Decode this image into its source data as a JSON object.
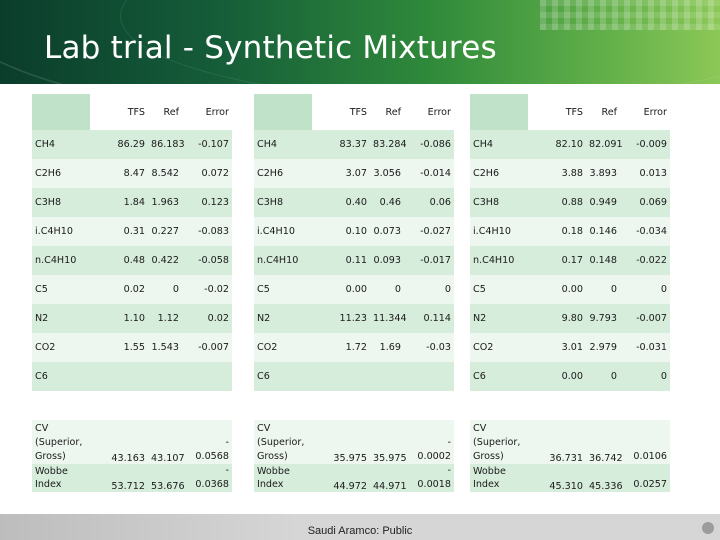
{
  "slide": {
    "title": "Lab trial - Synthetic Mixtures",
    "footer": "Saudi Aramco: Public"
  },
  "panels": [
    {
      "headers": [
        "TFS",
        "Ref",
        "Error"
      ],
      "rows": [
        {
          "label": "CH4",
          "tfs": "86.29",
          "ref": "86.183",
          "err": "-0.107"
        },
        {
          "label": "C2H6",
          "tfs": "8.47",
          "ref": "8.542",
          "err": "0.072"
        },
        {
          "label": "C3H8",
          "tfs": "1.84",
          "ref": "1.963",
          "err": "0.123"
        },
        {
          "label": "i.C4H10",
          "tfs": "0.31",
          "ref": "0.227",
          "err": "-0.083"
        },
        {
          "label": "n.C4H10",
          "tfs": "0.48",
          "ref": "0.422",
          "err": "-0.058"
        },
        {
          "label": "C5",
          "tfs": "0.02",
          "ref": "0",
          "err": "-0.02"
        },
        {
          "label": "N2",
          "tfs": "1.10",
          "ref": "1.12",
          "err": "0.02"
        },
        {
          "label": "CO2",
          "tfs": "1.55",
          "ref": "1.543",
          "err": "-0.007"
        },
        {
          "label": "C6",
          "tfs": "",
          "ref": "",
          "err": ""
        }
      ],
      "cv": {
        "label": "CV (Superior, Gross)",
        "tfs": "43.163",
        "ref": "43.107",
        "err_sign": "-",
        "err": "0.0568"
      },
      "wobbe": {
        "label": "Wobbe Index",
        "tfs": "53.712",
        "ref": "53.676",
        "err_sign": "-",
        "err": "0.0368"
      }
    },
    {
      "headers": [
        "TFS",
        "Ref",
        "Error"
      ],
      "rows": [
        {
          "label": "CH4",
          "tfs": "83.37",
          "ref": "83.284",
          "err": "-0.086"
        },
        {
          "label": "C2H6",
          "tfs": "3.07",
          "ref": "3.056",
          "err": "-0.014"
        },
        {
          "label": "C3H8",
          "tfs": "0.40",
          "ref": "0.46",
          "err": "0.06"
        },
        {
          "label": "i.C4H10",
          "tfs": "0.10",
          "ref": "0.073",
          "err": "-0.027"
        },
        {
          "label": "n.C4H10",
          "tfs": "0.11",
          "ref": "0.093",
          "err": "-0.017"
        },
        {
          "label": "C5",
          "tfs": "0.00",
          "ref": "0",
          "err": "0"
        },
        {
          "label": "N2",
          "tfs": "11.23",
          "ref": "11.344",
          "err": "0.114"
        },
        {
          "label": "CO2",
          "tfs": "1.72",
          "ref": "1.69",
          "err": "-0.03"
        },
        {
          "label": "C6",
          "tfs": "",
          "ref": "",
          "err": ""
        }
      ],
      "cv": {
        "label": "CV (Superior, Gross)",
        "tfs": "35.975",
        "ref": "35.975",
        "err_sign": "-",
        "err": "0.0002"
      },
      "wobbe": {
        "label": "Wobbe Index",
        "tfs": "44.972",
        "ref": "44.971",
        "err_sign": "-",
        "err": "0.0018"
      }
    },
    {
      "headers": [
        "TFS",
        "Ref",
        "Error"
      ],
      "rows": [
        {
          "label": "CH4",
          "tfs": "82.10",
          "ref": "82.091",
          "err": "-0.009"
        },
        {
          "label": "C2H6",
          "tfs": "3.88",
          "ref": "3.893",
          "err": "0.013"
        },
        {
          "label": "C3H8",
          "tfs": "0.88",
          "ref": "0.949",
          "err": "0.069"
        },
        {
          "label": "i.C4H10",
          "tfs": "0.18",
          "ref": "0.146",
          "err": "-0.034"
        },
        {
          "label": "n.C4H10",
          "tfs": "0.17",
          "ref": "0.148",
          "err": "-0.022"
        },
        {
          "label": "C5",
          "tfs": "0.00",
          "ref": "0",
          "err": "0"
        },
        {
          "label": "N2",
          "tfs": "9.80",
          "ref": "9.793",
          "err": "-0.007"
        },
        {
          "label": "CO2",
          "tfs": "3.01",
          "ref": "2.979",
          "err": "-0.031"
        },
        {
          "label": "C6",
          "tfs": "0.00",
          "ref": "0",
          "err": "0"
        }
      ],
      "cv": {
        "label": "CV (Superior, Gross)",
        "tfs": "36.731",
        "ref": "36.742",
        "err_sign": "",
        "err": "0.0106"
      },
      "wobbe": {
        "label": "Wobbe Index",
        "tfs": "45.310",
        "ref": "45.336",
        "err_sign": "",
        "err": "0.0257"
      }
    }
  ]
}
